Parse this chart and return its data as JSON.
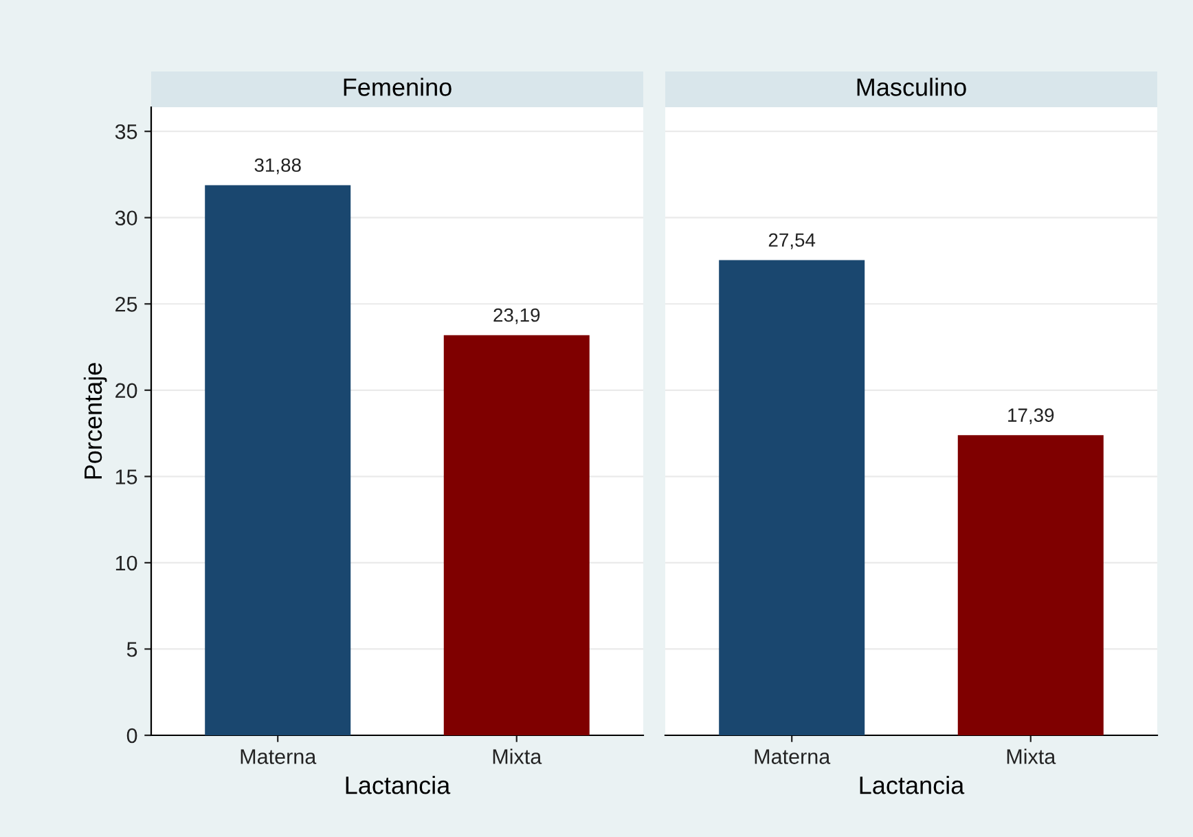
{
  "chart_data": [
    {
      "type": "bar",
      "title": "Femenino",
      "categories": [
        "Materna",
        "Mixta"
      ],
      "values": [
        31.88,
        23.19
      ],
      "colors": [
        "#1a476f",
        "#7f0000"
      ],
      "value_labels": [
        "31,88",
        "23,19"
      ],
      "xlabel": "Lactancia",
      "ylabel": "Porcentaje",
      "ylim": [
        0,
        36.4
      ],
      "yticks": [
        0,
        5,
        10,
        15,
        20,
        25,
        30,
        35
      ],
      "grid": "y"
    },
    {
      "type": "bar",
      "title": "Masculino",
      "categories": [
        "Materna",
        "Mixta"
      ],
      "values": [
        27.54,
        17.39
      ],
      "colors": [
        "#1a476f",
        "#7f0000"
      ],
      "value_labels": [
        "27,54",
        "17,39"
      ],
      "xlabel": "Lactancia",
      "ylim": [
        0,
        36.4
      ],
      "yticks": [
        0,
        5,
        10,
        15,
        20,
        25,
        30,
        35
      ],
      "grid": "y",
      "tick_labels": "x"
    }
  ]
}
